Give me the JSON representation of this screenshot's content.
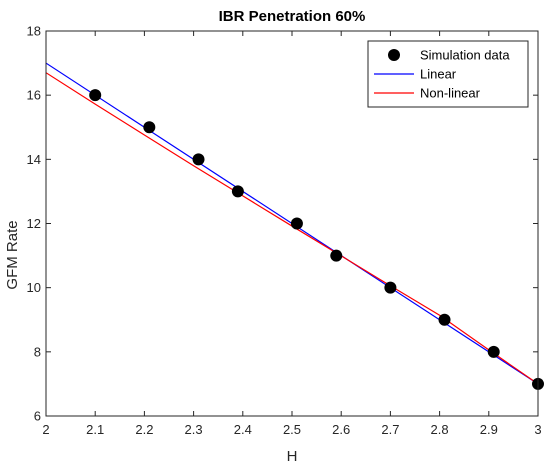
{
  "chart_data": {
    "type": "line",
    "title": "IBR Penetration 60%",
    "xlabel": "H",
    "ylabel": "GFM Rate",
    "xlim": [
      2,
      3
    ],
    "ylim": [
      6,
      18
    ],
    "xticks": [
      2,
      2.1,
      2.2,
      2.3,
      2.4,
      2.5,
      2.6,
      2.7,
      2.8,
      2.9,
      3
    ],
    "xtick_labels": [
      "2",
      "2.1",
      "2.2",
      "2.3",
      "2.4",
      "2.5",
      "2.6",
      "2.7",
      "2.8",
      "2.9",
      "3"
    ],
    "yticks": [
      6,
      8,
      10,
      12,
      14,
      16,
      18
    ],
    "ytick_labels": [
      "6",
      "8",
      "10",
      "12",
      "14",
      "16",
      "18"
    ],
    "grid": false,
    "legend_position": "top-right",
    "series": [
      {
        "name": "Simulation data",
        "type": "scatter",
        "color": "#000000",
        "x": [
          2.1,
          2.21,
          2.31,
          2.39,
          2.51,
          2.59,
          2.7,
          2.81,
          2.91,
          3.0
        ],
        "y": [
          16,
          15,
          14,
          13,
          12,
          11,
          10,
          9,
          8,
          7
        ]
      },
      {
        "name": "Linear",
        "type": "line",
        "color": "#0000ff",
        "x": [
          2.0,
          3.0
        ],
        "y": [
          17.0,
          7.0
        ]
      },
      {
        "name": "Non-linear",
        "type": "line",
        "color": "#ff0000",
        "x": [
          2.0,
          2.1,
          2.2,
          2.3,
          2.4,
          2.5,
          2.6,
          2.7,
          2.8,
          2.9,
          3.0
        ],
        "y": [
          16.7,
          15.72,
          14.76,
          13.8,
          12.86,
          11.92,
          10.99,
          10.06,
          9.14,
          8.06,
          7.0
        ]
      }
    ]
  }
}
